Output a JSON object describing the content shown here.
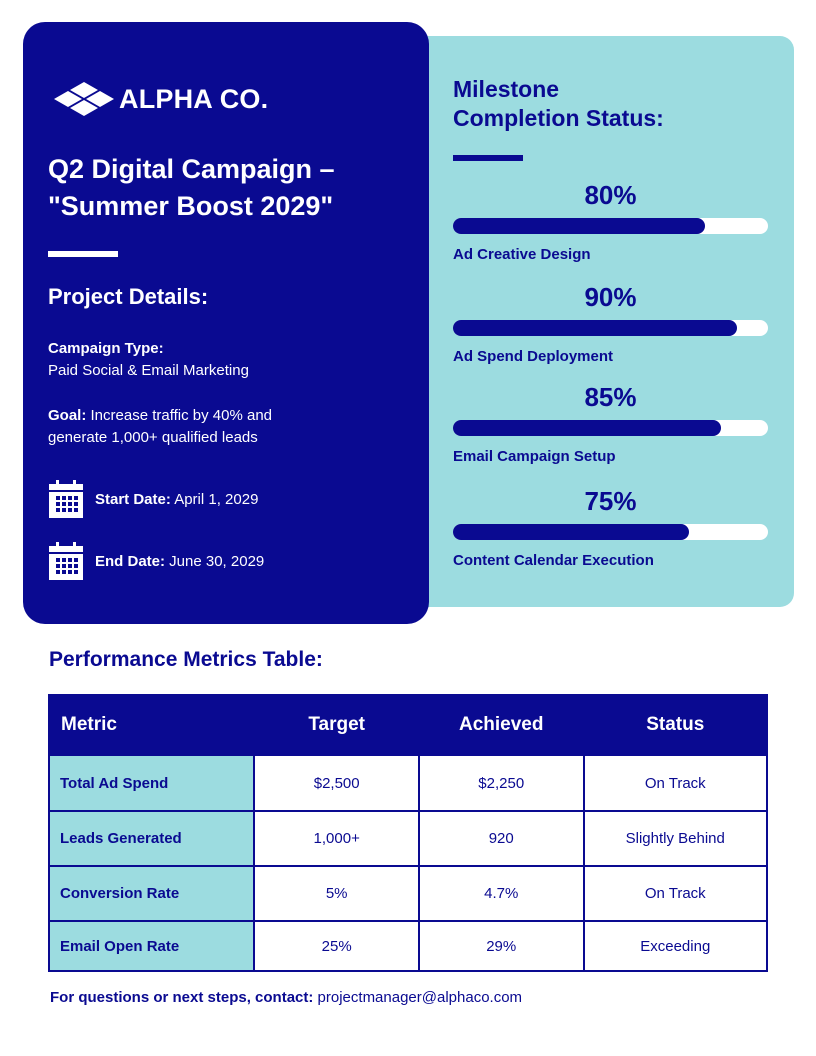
{
  "brand": {
    "name": "ALPHA CO.",
    "navy": "#0a0a91",
    "aqua": "#9cdce0"
  },
  "campaign": {
    "title_line1": "Q2 Digital Campaign –",
    "title_line2": "\"Summer Boost 2029\""
  },
  "details": {
    "heading": "Project Details:",
    "type_label": "Campaign Type:",
    "type_value": "Paid Social & Email Marketing",
    "goal_label": "Goal:",
    "goal_value_line1": " Increase traffic by 40% and",
    "goal_value_line2": "generate 1,000+ qualified leads",
    "start_label": "Start Date:",
    "start_value": " April 1, 2029",
    "end_label": "End Date:",
    "end_value": " June 30, 2029",
    "calendar_icon": "calendar-icon"
  },
  "milestones": {
    "heading_line1": "Milestone",
    "heading_line2": "Completion Status:",
    "items": [
      {
        "label": "Ad Creative Design",
        "percent_text": "80%",
        "value": 0.8
      },
      {
        "label": "Ad Spend Deployment",
        "percent_text": "90%",
        "value": 0.9
      },
      {
        "label": "Email Campaign Setup",
        "percent_text": "85%",
        "value": 0.85
      },
      {
        "label": "Content Calendar Execution",
        "percent_text": "75%",
        "value": 0.75
      }
    ]
  },
  "metrics": {
    "heading": "Performance Metrics Table:",
    "columns": [
      "Metric",
      "Target",
      "Achieved",
      "Status"
    ],
    "rows": [
      {
        "metric": "Total Ad Spend",
        "target": "$2,500",
        "achieved": "$2,250",
        "status": "On Track"
      },
      {
        "metric": "Leads Generated",
        "target": "1,000+",
        "achieved": "920",
        "status": "Slightly Behind"
      },
      {
        "metric": "Conversion Rate",
        "target": "5%",
        "achieved": "4.7%",
        "status": "On Track"
      },
      {
        "metric": "Email Open Rate",
        "target": "25%",
        "achieved": "29%",
        "status": "Exceeding"
      }
    ]
  },
  "contact": {
    "label": "For questions or next steps, contact:",
    "email": " projectmanager@alphaco.com"
  }
}
